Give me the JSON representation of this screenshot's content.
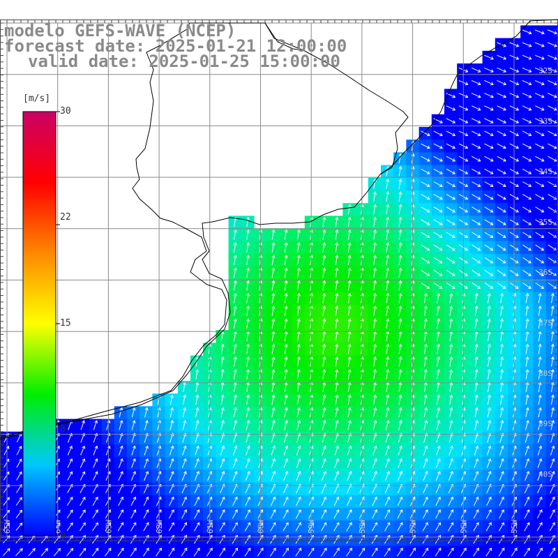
{
  "title": {
    "line1": "modelo GEFS-WAVE (NCEP)",
    "line2": "forecast date: 2025-01-21 12:00:00",
    "line3": "valid date: 2025-01-25 15:00:00"
  },
  "colorbar": {
    "unit": "[m/s]",
    "ticks": [
      "30",
      "22",
      "15",
      "8",
      "0"
    ],
    "values": [
      30,
      22,
      15,
      8,
      0
    ],
    "colors": [
      "#0000ff",
      "#00c8ff",
      "#00ee00",
      "#ffff00",
      "#ff8800",
      "#ff0000",
      "#cc0066"
    ]
  },
  "map": {
    "lat_labels": [
      "32S",
      "33S",
      "34S",
      "35S",
      "36S",
      "37S",
      "38S",
      "39S",
      "40S"
    ],
    "lon_labels": [
      "65W",
      "64W",
      "63W",
      "62W",
      "61W",
      "60W",
      "59W",
      "58W",
      "57W",
      "56W",
      "55W"
    ],
    "land_color": "#ffffff",
    "coast_color": "#000000",
    "grid_color": "#888888",
    "arrow_color": "#ffffff"
  }
}
